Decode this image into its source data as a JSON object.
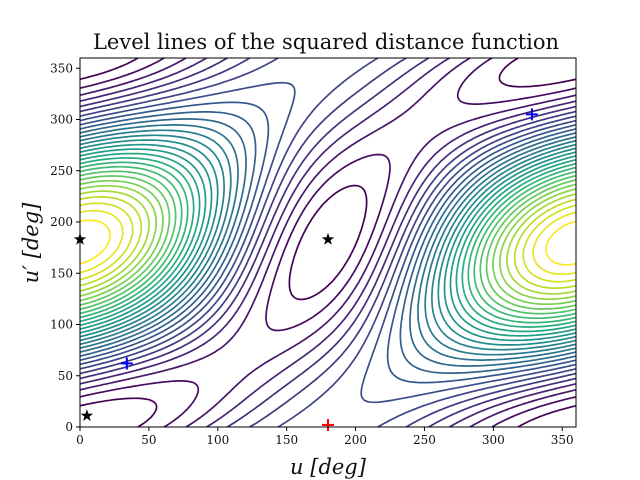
{
  "chart_data": {
    "type": "contour",
    "title": "Level lines of the squared distance function",
    "xlabel": "u [deg]",
    "ylabel": "u′ [deg]",
    "xlim": [
      0,
      360
    ],
    "ylim": [
      0,
      360
    ],
    "xticks": [
      "0",
      "50",
      "100",
      "150",
      "200",
      "250",
      "300",
      "350"
    ],
    "yticks": [
      "0",
      "50",
      "100",
      "150",
      "200",
      "250",
      "300",
      "350"
    ],
    "grid": false,
    "colormap": "viridis",
    "contour_levels": 30,
    "minima_markers": {
      "marker": "+",
      "points": [
        [
          34,
          62
        ],
        [
          328,
          305
        ]
      ],
      "color": "#0000ff"
    },
    "maximum_marker": {
      "marker": "+",
      "points": [
        [
          180,
          2
        ]
      ],
      "color": "#ff0000"
    },
    "saddle_markers": {
      "marker": "★",
      "points": [
        [
          0,
          183
        ],
        [
          180,
          183
        ],
        [
          5,
          11
        ]
      ],
      "color": "#000000"
    }
  }
}
